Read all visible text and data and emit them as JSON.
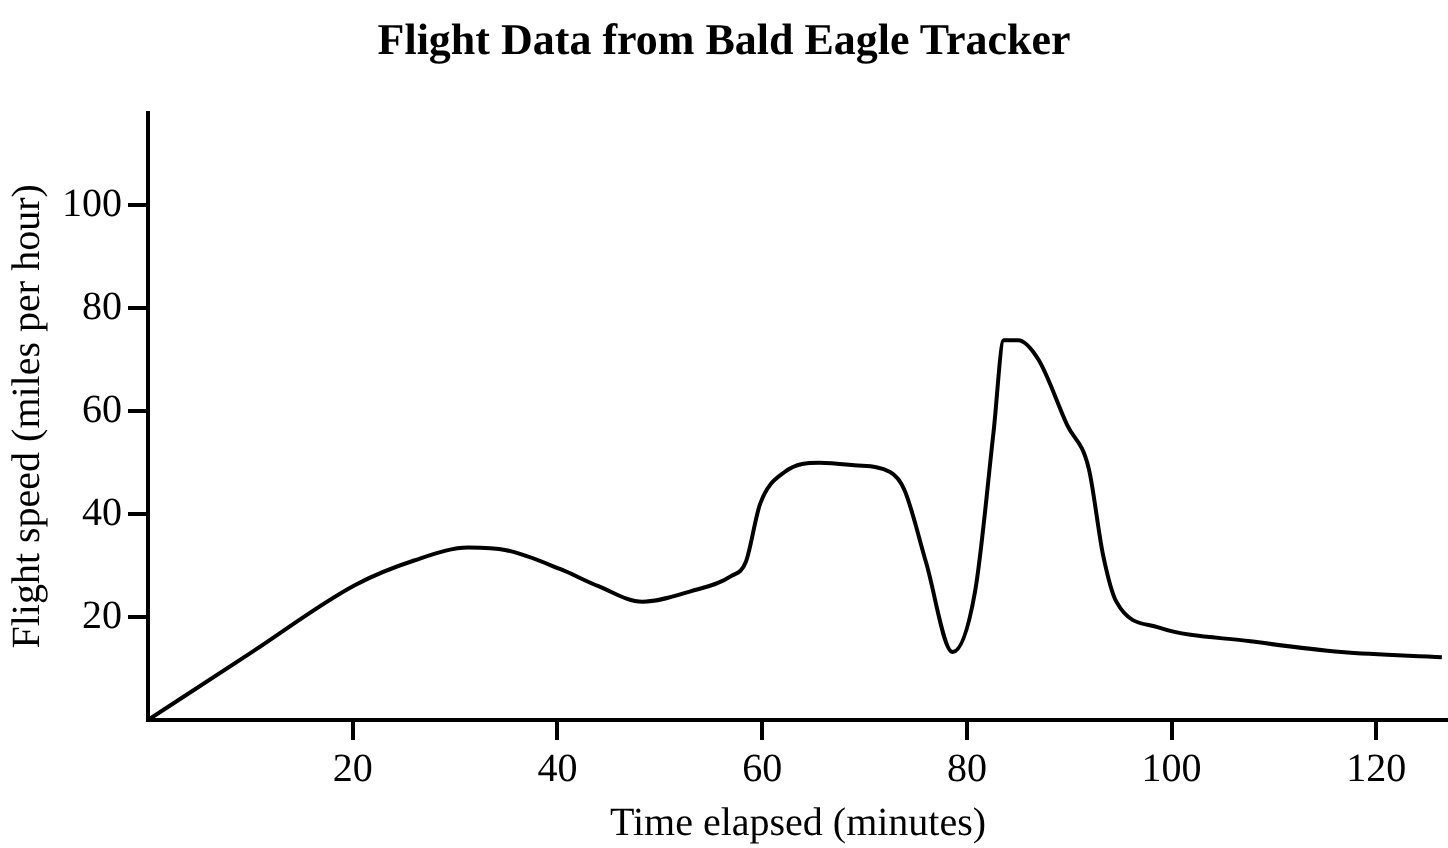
{
  "chart_data": {
    "type": "line",
    "title": "Flight Data from Bald Eagle Tracker",
    "xlabel": "Time elapsed (minutes)",
    "ylabel": "Flight speed (miles per hour)",
    "x": [
      0,
      10,
      20.2,
      26,
      31.3,
      35,
      40.3,
      44,
      48.3,
      53,
      57,
      58.4,
      59.8,
      62.2,
      65.6,
      69,
      72.5,
      73.9,
      76,
      78.6,
      80.8,
      82.6,
      83.6,
      85,
      87,
      89.8,
      91.9,
      93.3,
      94.6,
      98.7,
      107.7,
      116.6,
      126.4
    ],
    "values": [
      0,
      13,
      26.2,
      31,
      33.5,
      33,
      29.3,
      26,
      23,
      25,
      28,
      30.7,
      42,
      48.2,
      50,
      49.5,
      48.2,
      44.7,
      30.7,
      13.2,
      25,
      55.9,
      73.8,
      73.8,
      70,
      57.3,
      48.9,
      32.1,
      23,
      18,
      15.3,
      13.2,
      12.2
    ],
    "color": "#000000",
    "marker": "none",
    "line_style": "solid",
    "xlim": [
      0,
      127
    ],
    "xticks": [
      20,
      40,
      60,
      80,
      100,
      120
    ],
    "ylim": [
      0,
      118
    ],
    "yticks": [
      20,
      40,
      60,
      80,
      100
    ]
  }
}
